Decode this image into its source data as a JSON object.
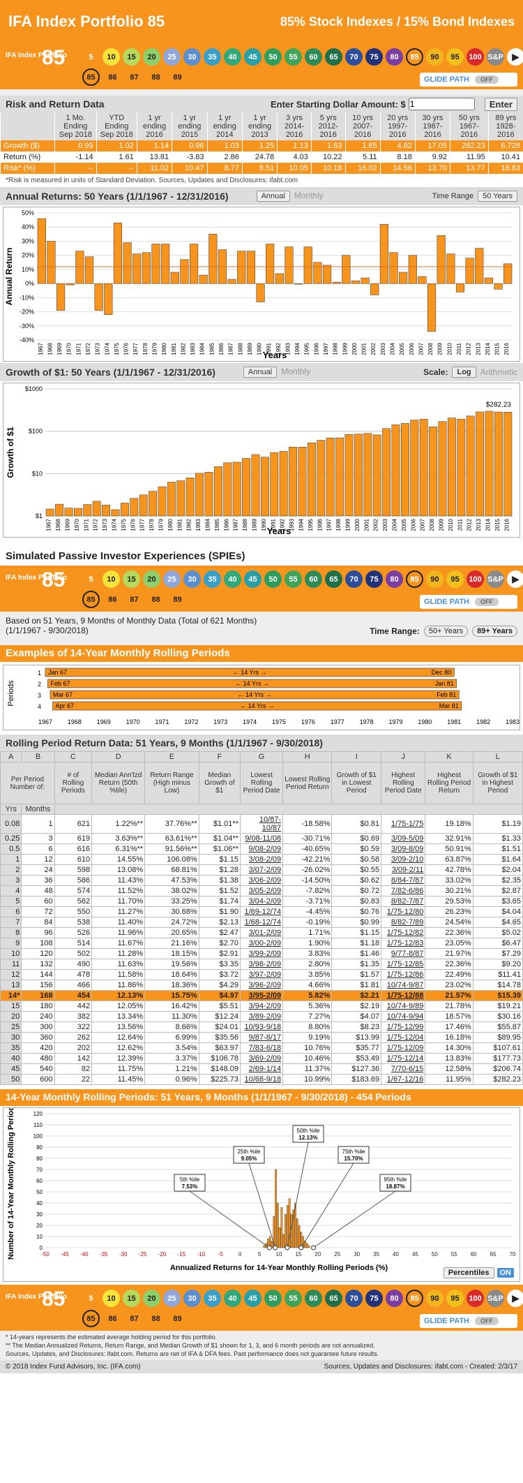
{
  "header": {
    "title": "IFA Index Portfolio 85",
    "subtitle": "85% Stock Indexes / 15% Bond Indexes"
  },
  "portfolio_bar": {
    "label": "IFA Index Portfolio",
    "number": "85",
    "glide": "GLIDE PATH",
    "off": "OFF",
    "circles": [
      "5",
      "10",
      "15",
      "20",
      "25",
      "30",
      "35",
      "40",
      "45",
      "50",
      "55",
      "60",
      "65",
      "70",
      "75",
      "80",
      "85",
      "90",
      "95",
      "100",
      "S&P"
    ],
    "sub": [
      "85",
      "86",
      "87",
      "88",
      "89"
    ]
  },
  "risk": {
    "title": "Risk and Return Data",
    "amount_label": "Enter Starting Dollar Amount: $",
    "amount": "1",
    "enter": "Enter",
    "headers": [
      "1 Mo. Ending Sep 2018",
      "YTD Ending Sep 2018",
      "1 yr ending 2016",
      "1 yr ending 2015",
      "1 yr ending 2014",
      "1 yr ending 2013",
      "3 yrs 2014-2016",
      "5 yrs 2012-2016",
      "10 yrs 2007-2016",
      "20 yrs 1997-2016",
      "30 yrs 1987-2016",
      "50 yrs 1967-2016",
      "89 yrs 1928-2016"
    ],
    "rows": [
      {
        "label": "Growth ($)",
        "v": [
          "0.99",
          "1.02",
          "1.14",
          "0.96",
          "1.03",
          "1.25",
          "1.13",
          "1.63",
          "1.65",
          "4.82",
          "17.05",
          "282.23",
          "6,728"
        ]
      },
      {
        "label": "Return (%)",
        "v": [
          "-1.14",
          "1.61",
          "13.81",
          "-3.83",
          "2.86",
          "24.78",
          "4.03",
          "10.22",
          "5.11",
          "8.18",
          "9.92",
          "11.95",
          "10.41"
        ]
      },
      {
        "label": "Risk* (%)",
        "v": [
          "--",
          "--",
          "11.02",
          "10.47",
          "8.77",
          "8.51",
          "10.05",
          "10.18",
          "16.02",
          "14.56",
          "13.70",
          "13.77",
          "18.83"
        ]
      }
    ],
    "note": "*Risk is measured in units of Standard Deviation. Sources, Updates and Disclosures: ifabt.com"
  },
  "annual": {
    "title": "Annual Returns: 50 Years (1/1/1967 - 12/31/2016)",
    "btn1": "Annual",
    "btn2": "Monthly",
    "range_label": "Time Range",
    "range": "50 Years"
  },
  "growth": {
    "title": "Growth of $1: 50 Years (1/1/1967 - 12/31/2016)",
    "btn1": "Annual",
    "btn2": "Monthly",
    "scale": "Scale:",
    "log": "Log",
    "arith": "Arithmetic",
    "final": "$282.23"
  },
  "chart_data": [
    {
      "type": "bar",
      "title": "Annual Returns",
      "ylabel": "Annual Return",
      "xlabel": "Years",
      "ylim": [
        -40,
        50
      ],
      "yticks": [
        "50%",
        "40%",
        "30%",
        "20%",
        "10%",
        "0%",
        "-10%",
        "-20%",
        "-30%",
        "-40%"
      ],
      "categories": [
        "1967",
        "1968",
        "1969",
        "1970",
        "1971",
        "1972",
        "1973",
        "1974",
        "1975",
        "1976",
        "1977",
        "1978",
        "1979",
        "1980",
        "1981",
        "1982",
        "1983",
        "1984",
        "1985",
        "1986",
        "1987",
        "1988",
        "1989",
        "1990",
        "1991",
        "1992",
        "1993",
        "1994",
        "1995",
        "1996",
        "1997",
        "1998",
        "1999",
        "2000",
        "2001",
        "2002",
        "2003",
        "2004",
        "2005",
        "2006",
        "2007",
        "2008",
        "2009",
        "2010",
        "2011",
        "2012",
        "2013",
        "2014",
        "2015",
        "2016"
      ],
      "values": [
        46,
        30,
        -19,
        -1,
        23,
        19,
        -19,
        -22,
        43,
        29,
        21,
        22,
        28,
        28,
        8,
        17,
        28,
        6,
        35,
        24,
        3,
        23,
        23,
        -13,
        28,
        7,
        26,
        0,
        26,
        15,
        13,
        1,
        20,
        2,
        4,
        -8,
        42,
        22,
        8,
        20,
        5,
        -34,
        34,
        21,
        -6,
        18,
        25,
        4,
        -4,
        14
      ]
    },
    {
      "type": "bar",
      "title": "Growth of $1",
      "ylabel": "Growth of $1",
      "xlabel": "Years",
      "scale": "log",
      "yticks": [
        "$1000",
        "$100",
        "$10",
        "$1"
      ],
      "categories": [
        "1967",
        "1968",
        "1969",
        "1970",
        "1971",
        "1972",
        "1973",
        "1974",
        "1975",
        "1976",
        "1977",
        "1978",
        "1979",
        "1980",
        "1981",
        "1982",
        "1983",
        "1984",
        "1985",
        "1986",
        "1987",
        "1988",
        "1989",
        "1990",
        "1991",
        "1992",
        "1993",
        "1994",
        "1995",
        "1996",
        "1997",
        "1998",
        "1999",
        "2000",
        "2001",
        "2002",
        "2003",
        "2004",
        "2005",
        "2006",
        "2007",
        "2008",
        "2009",
        "2010",
        "2011",
        "2012",
        "2013",
        "2014",
        "2015",
        "2016"
      ],
      "values": [
        1.46,
        1.9,
        1.54,
        1.52,
        1.87,
        2.23,
        1.81,
        1.41,
        2.02,
        2.6,
        3.15,
        3.84,
        4.92,
        6.3,
        6.8,
        7.96,
        10.2,
        10.8,
        14.6,
        18.1,
        18.6,
        22.9,
        28.2,
        24.5,
        31.4,
        33.6,
        42.3,
        42.3,
        53.3,
        61.3,
        69.3,
        70,
        84,
        85.7,
        89.1,
        82,
        116,
        142,
        153,
        184,
        193,
        127,
        170,
        206,
        194,
        229,
        286,
        297,
        285,
        282.23
      ]
    },
    {
      "type": "histogram",
      "title": "14-Year Monthly Rolling Periods",
      "ylabel": "Number of 14-Year Monthly Rolling Periods",
      "xlabel": "Annualized Returns for 14-Year Monthly Rolling Periods (%)",
      "ylim": [
        0,
        120
      ],
      "yticks": [
        "120",
        "110",
        "100",
        "90",
        "80",
        "70",
        "60",
        "50",
        "40",
        "30",
        "20",
        "10",
        "0"
      ],
      "xticks": [
        "-50",
        "-45",
        "-40",
        "-35",
        "-30",
        "-25",
        "-20",
        "-15",
        "-10",
        "-5",
        "0",
        "5",
        "10",
        "15",
        "20",
        "25",
        "30",
        "35",
        "40",
        "45",
        "50",
        "55",
        "60",
        "65",
        "70"
      ],
      "x": [
        6,
        6.5,
        7,
        7.5,
        8,
        8.5,
        9,
        9.5,
        10,
        10.5,
        11,
        11.5,
        12,
        12.5,
        13,
        13.5,
        14,
        14.5,
        15,
        15.5,
        16,
        16.5,
        17,
        17.5
      ],
      "values": [
        2,
        4,
        8,
        10,
        6,
        28,
        70,
        40,
        18,
        36,
        12,
        30,
        38,
        44,
        30,
        34,
        40,
        26,
        20,
        14,
        10,
        6,
        4,
        2
      ],
      "annotations": [
        {
          "label": "5th %ile",
          "value": "7.53%"
        },
        {
          "label": "25th %ile",
          "value": "9.05%"
        },
        {
          "label": "50th %ile",
          "value": "12.13%"
        },
        {
          "label": "75th %ile",
          "value": "15.70%"
        },
        {
          "label": "95th %ile",
          "value": "18.87%"
        }
      ]
    }
  ],
  "spies": {
    "title": "Simulated Passive Investor Experiences (SPIEs)",
    "based": "Based on 51 Years, 9 Months of Monthly Data (Total of 621 Months)",
    "range": "(1/1/1967 - 9/30/2018)",
    "tr_label": "Time Range:",
    "b1": "50+ Years",
    "b2": "89+ Years"
  },
  "examples": {
    "title": "Examples of 14-Year Monthly Rolling Periods",
    "ylabel": "Periods",
    "mid": "14 Yrs",
    "rows": [
      {
        "n": "1",
        "s": "Jan 67",
        "e": "Dec 80"
      },
      {
        "n": "2",
        "s": "Feb 67",
        "e": "Jan 81"
      },
      {
        "n": "3",
        "s": "Mar 67",
        "e": "Feb 81"
      },
      {
        "n": "4",
        "s": "Apr 67",
        "e": "Mar 81"
      }
    ],
    "xticks": [
      "1967",
      "1968",
      "1969",
      "1970",
      "1971",
      "1972",
      "1973",
      "1974",
      "1975",
      "1976",
      "1977",
      "1978",
      "1979",
      "1980",
      "1981",
      "1982",
      "1983"
    ]
  },
  "rolling": {
    "title": "Rolling Period Return Data: 51 Years, 9 Months (1/1/1967 - 9/30/2018)",
    "letters": [
      "A",
      "B",
      "C",
      "D",
      "E",
      "F",
      "G",
      "H",
      "I",
      "J",
      "K",
      "L"
    ],
    "headers": [
      "Per Period Number of:",
      "# of Rolling Periods",
      "Median Ann'lzd Return (50th %tile)",
      "Return Range (High minus Low)",
      "Median Growth of $1",
      "Lowest Rolling Period Date",
      "Lowest Rolling Period Return",
      "Growth of $1 in Lowest Period",
      "Highest Rolling Period Date",
      "Highest Rolling Period Return",
      "Growth of $1 in Highest Period"
    ],
    "sub": [
      "Yrs",
      "Months"
    ],
    "rows": [
      [
        "0.08",
        "1",
        "621",
        "1.22%**",
        "37.76%**",
        "$1.01**",
        "10/87-10/87",
        "-18.58%",
        "$0.81",
        "1/75-1/75",
        "19.18%",
        "$1.19"
      ],
      [
        "0.25",
        "3",
        "619",
        "3.63%**",
        "63.61%**",
        "$1.04**",
        "9/08-11/08",
        "-30.71%",
        "$0.69",
        "3/09-5/09",
        "32.91%",
        "$1.33"
      ],
      [
        "0.5",
        "6",
        "616",
        "6.31%**",
        "91.56%**",
        "$1.06**",
        "9/08-2/09",
        "-40.65%",
        "$0.59",
        "3/09-8/09",
        "50.91%",
        "$1.51"
      ],
      [
        "1",
        "12",
        "610",
        "14.55%",
        "106.08%",
        "$1.15",
        "3/08-2/09",
        "-42.21%",
        "$0.58",
        "3/09-2/10",
        "63.87%",
        "$1.64"
      ],
      [
        "2",
        "24",
        "598",
        "13.08%",
        "68.81%",
        "$1.28",
        "3/07-2/09",
        "-26.02%",
        "$0.55",
        "3/09-2/11",
        "42.78%",
        "$2.04"
      ],
      [
        "3",
        "36",
        "586",
        "11.43%",
        "47.53%",
        "$1.38",
        "3/06-2/09",
        "-14.50%",
        "$0.62",
        "8/84-7/87",
        "33.02%",
        "$2.35"
      ],
      [
        "4",
        "48",
        "574",
        "11.52%",
        "38.02%",
        "$1.52",
        "3/05-2/09",
        "-7.82%",
        "$0.72",
        "7/82-6/86",
        "30.21%",
        "$2.87"
      ],
      [
        "5",
        "60",
        "562",
        "11.70%",
        "33.25%",
        "$1.74",
        "3/04-2/09",
        "-3.71%",
        "$0.83",
        "8/82-7/87",
        "29.53%",
        "$3.65"
      ],
      [
        "6",
        "72",
        "550",
        "11.27%",
        "30.68%",
        "$1.90",
        "1/69-12/74",
        "-4.45%",
        "$0.76",
        "1/75-12/80",
        "26.23%",
        "$4.04"
      ],
      [
        "7",
        "84",
        "538",
        "11.40%",
        "24.72%",
        "$2.13",
        "1/68-12/74",
        "-0.19%",
        "$0.99",
        "8/82-7/89",
        "24.54%",
        "$4.65"
      ],
      [
        "8",
        "96",
        "526",
        "11.96%",
        "20.65%",
        "$2.47",
        "3/01-2/09",
        "1.71%",
        "$1.15",
        "1/75-12/82",
        "22.36%",
        "$5.02"
      ],
      [
        "9",
        "108",
        "514",
        "11.67%",
        "21.16%",
        "$2.70",
        "3/00-2/09",
        "1.90%",
        "$1.18",
        "1/75-12/83",
        "23.05%",
        "$6.47"
      ],
      [
        "10",
        "120",
        "502",
        "11.28%",
        "18.15%",
        "$2.91",
        "3/99-2/09",
        "3.83%",
        "$1.46",
        "9/77-8/87",
        "21.97%",
        "$7.29"
      ],
      [
        "11",
        "132",
        "490",
        "11.63%",
        "19.56%",
        "$3.35",
        "3/98-2/09",
        "2.80%",
        "$1.35",
        "1/75-12/85",
        "22.36%",
        "$9.20"
      ],
      [
        "12",
        "144",
        "478",
        "11.58%",
        "18.64%",
        "$3.72",
        "3/97-2/09",
        "3.85%",
        "$1.57",
        "1/75-12/86",
        "22.49%",
        "$11.41"
      ],
      [
        "13",
        "156",
        "466",
        "11.86%",
        "18.36%",
        "$4.29",
        "3/96-2/09",
        "4.66%",
        "$1.81",
        "10/74-9/87",
        "23.02%",
        "$14.78"
      ],
      [
        "14*",
        "168",
        "454",
        "12.13%",
        "15.75%",
        "$4.97",
        "3/95-2/09",
        "5.82%",
        "$2.21",
        "1/75-12/88",
        "21.57%",
        "$15.39"
      ],
      [
        "15",
        "180",
        "442",
        "12.05%",
        "16.42%",
        "$5.51",
        "3/94-2/09",
        "5.36%",
        "$2.19",
        "10/74-9/89",
        "21.78%",
        "$19.21"
      ],
      [
        "20",
        "240",
        "382",
        "13.34%",
        "11.30%",
        "$12.24",
        "3/89-2/09",
        "7.27%",
        "$4.07",
        "10/74-9/94",
        "18.57%",
        "$30.16"
      ],
      [
        "25",
        "300",
        "322",
        "13.56%",
        "8.66%",
        "$24.01",
        "10/93-9/18",
        "8.80%",
        "$8.23",
        "1/75-12/99",
        "17.46%",
        "$55.87"
      ],
      [
        "30",
        "360",
        "262",
        "12.64%",
        "6.99%",
        "$35.56",
        "9/87-8/17",
        "9.19%",
        "$13.99",
        "1/75-12/04",
        "16.18%",
        "$89.95"
      ],
      [
        "35",
        "420",
        "202",
        "12.62%",
        "3.54%",
        "$63.97",
        "7/83-6/18",
        "10.76%",
        "$35.77",
        "1/75-12/09",
        "14.30%",
        "$107.61"
      ],
      [
        "40",
        "480",
        "142",
        "12.39%",
        "3.37%",
        "$106.78",
        "3/69-2/09",
        "10.46%",
        "$53.49",
        "1/75-12/14",
        "13.83%",
        "$177.73"
      ],
      [
        "45",
        "540",
        "82",
        "11.75%",
        "1.21%",
        "$148.09",
        "2/69-1/14",
        "11.37%",
        "$127.36",
        "7/70-6/15",
        "12.58%",
        "$206.74"
      ],
      [
        "50",
        "600",
        "22",
        "11.45%",
        "0.96%",
        "$225.73",
        "10/68-9/18",
        "10.99%",
        "$183.69",
        "1/67-12/16",
        "11.95%",
        "$282.23"
      ]
    ]
  },
  "hist": {
    "title": "14-Year Monthly Rolling Periods: 51 Years, 9 Months (1/1/1967 - 9/30/2018) - 454 Periods",
    "pct": "Percentiles",
    "on": "ON"
  },
  "footnotes": [
    "* 14-years represents the estimated average holding period for this portfolio.",
    "** The Median Annualized Returns, Return Range, and Median Growth of $1 shown for 1, 3, and 6 month periods are not annualized.",
    "Sources, Updates, and Disclosures: ifabt.com. Returns are net of IFA & DFA fees. Past performance does not guarantee future results."
  ],
  "footer": {
    "left": "© 2018 Index Fund Advisors, Inc. (IFA.com)",
    "right": "Sources, Updates and Disclosures: ifabt.com - Created: 2/3/17"
  },
  "colors": {
    "orange": "#f7941d",
    "c5": "#f7941d",
    "c10": "#f5e23a",
    "c15": "#b5d95a",
    "c20": "#8fcf6b",
    "c25": "#8fa8d9",
    "c30": "#5b8fd0",
    "c35": "#3a9fc8",
    "c40": "#30a87a",
    "c45": "#29a0a8",
    "c50": "#2e9d5e",
    "c55": "#3fa35a",
    "c60": "#2e8b57",
    "c65": "#1f6f4a",
    "c70": "#2c4e9a",
    "c75": "#22337a",
    "c80": "#7a3fa0",
    "c85": "#f7941d",
    "c90": "#f2b51e",
    "c95": "#f2c01a",
    "c100": "#d92a2a",
    "sp": "#8a8a8a"
  }
}
